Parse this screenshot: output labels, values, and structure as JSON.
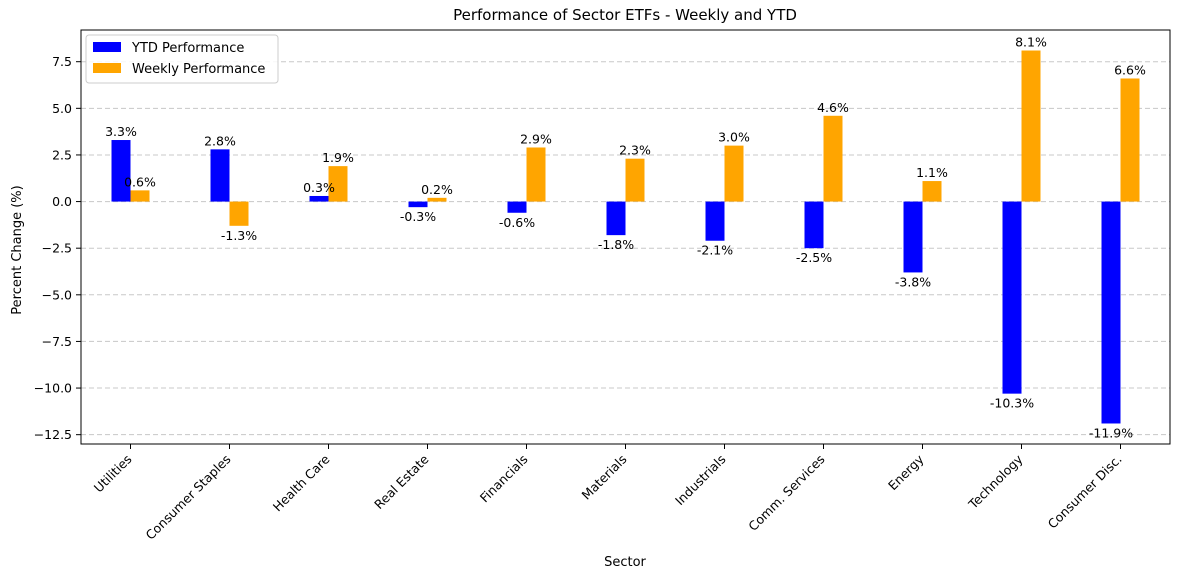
{
  "chart_data": {
    "type": "bar",
    "title": "Performance of Sector ETFs - Weekly and YTD",
    "xlabel": "Sector",
    "ylabel": "Percent Change (%)",
    "ylim": [
      -13.0,
      9.2
    ],
    "yticks": [
      7.5,
      5.0,
      2.5,
      0.0,
      -2.5,
      -5.0,
      -7.5,
      -10.0,
      -12.5
    ],
    "ytick_labels": [
      "7.5",
      "5.0",
      "2.5",
      "0.0",
      "−2.5",
      "−5.0",
      "−7.5",
      "−10.0",
      "−12.5"
    ],
    "grid": true,
    "legend_position": "upper-left",
    "categories": [
      "Utilities",
      "Consumer Staples",
      "Health Care",
      "Real Estate",
      "Financials",
      "Materials",
      "Industrials",
      "Comm. Services",
      "Energy",
      "Technology",
      "Consumer Disc."
    ],
    "series": [
      {
        "name": "YTD Performance",
        "color": "#0000ff",
        "values": [
          3.3,
          2.8,
          0.3,
          -0.3,
          -0.6,
          -1.8,
          -2.1,
          -2.5,
          -3.8,
          -10.3,
          -11.9
        ],
        "labels": [
          "3.3%",
          "2.8%",
          "0.3%",
          "-0.3%",
          "-0.6%",
          "-1.8%",
          "-2.1%",
          "-2.5%",
          "-3.8%",
          "-10.3%",
          "-11.9%"
        ]
      },
      {
        "name": "Weekly Performance",
        "color": "#ffa500",
        "values": [
          0.6,
          -1.3,
          1.9,
          0.2,
          2.9,
          2.3,
          3.0,
          4.6,
          1.1,
          8.1,
          6.6
        ],
        "labels": [
          "0.6%",
          "-1.3%",
          "1.9%",
          "0.2%",
          "2.9%",
          "2.3%",
          "3.0%",
          "4.6%",
          "1.1%",
          "8.1%",
          "6.6%"
        ]
      }
    ]
  }
}
